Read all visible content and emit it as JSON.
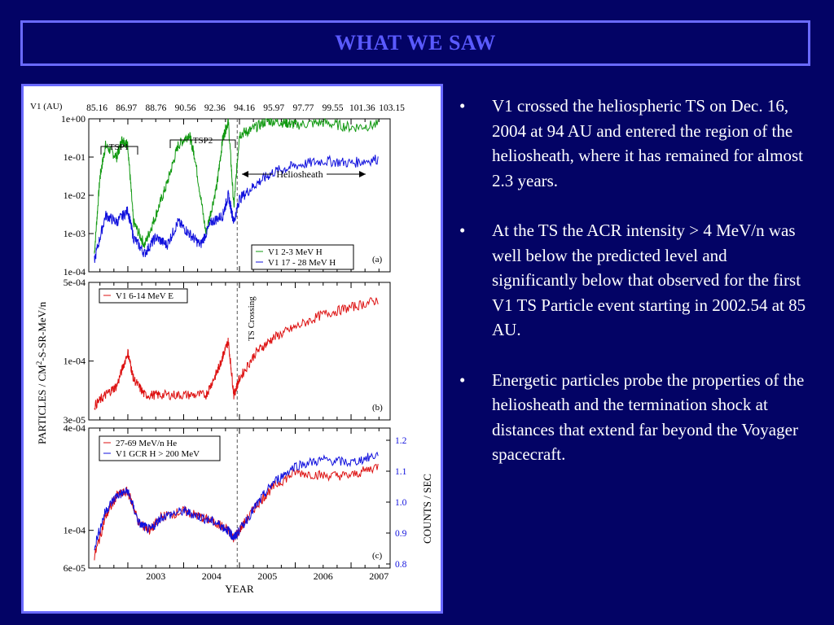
{
  "slide": {
    "title": "WHAT WE SAW",
    "bullets": [
      "V1 crossed the heliospheric TS on Dec. 16, 2004 at 94 AU and entered the region of the heliosheath, where it has remained for almost 2.3 years.",
      "At the TS the ACR intensity > 4 MeV/n was well below the predicted level and significantly below that observed for the first V1 TS Particle event starting in 2002.54 at 85 AU.",
      "Energetic particles probe the properties of the heliosheath and the termination shock at distances that extend far beyond the Voyager spacecraft."
    ],
    "bullet_glyph": "•"
  },
  "figure": {
    "top_axis_label": "V1 (AU)",
    "au_ticks": [
      "85.16",
      "86.97",
      "88.76",
      "90.56",
      "92.36",
      "94.16",
      "95.97",
      "97.77",
      "99.55",
      "101.36",
      "103.15"
    ],
    "ylabel_left": "PARTICLES / CM",
    "ylabel_left_sup": "2",
    "ylabel_left_rest": "-S-SR-MeV/n",
    "ylabel_right": "COUNTS / SEC",
    "xlabel": "YEAR",
    "ts_crossing_label": "TS Crossing",
    "heliosheath_label": "Heliosheath",
    "tsp1_label": "TSP1",
    "tsp2_label": "TSP2",
    "colors": {
      "green": "#119911",
      "blue": "#1111dd",
      "red": "#dd1111",
      "right_axis": "#1111dd"
    }
  },
  "chart_data": [
    {
      "panel": "(a)",
      "type": "line",
      "y_scale": "log",
      "ylim": [
        0.0001,
        1
      ],
      "y_ticks": [
        "1e+00",
        "1e-01",
        "1e-02",
        "1e-03",
        "1e-04"
      ],
      "xlim": [
        2002.3,
        2007.7
      ],
      "series": [
        {
          "name": "V1  2-3 MeV H",
          "color": "#119911",
          "x": [
            2002.4,
            2002.5,
            2002.6,
            2002.8,
            2002.9,
            2003.0,
            2003.1,
            2003.3,
            2003.5,
            2003.7,
            2003.9,
            2004.1,
            2004.2,
            2004.4,
            2004.6,
            2004.7,
            2004.8,
            2004.9,
            2005.0,
            2005.2,
            2005.5,
            2005.8,
            2006.0,
            2006.5,
            2007.0,
            2007.5
          ],
          "y": [
            0.0003,
            0.03,
            0.2,
            0.1,
            0.3,
            0.2,
            0.002,
            0.0005,
            0.003,
            0.02,
            0.2,
            0.4,
            0.1,
            0.001,
            0.02,
            0.3,
            0.9,
            0.005,
            0.4,
            0.5,
            0.9,
            0.8,
            0.7,
            0.8,
            0.6,
            0.7
          ]
        },
        {
          "name": "V1  17 - 28 MeV H",
          "color": "#1111dd",
          "x": [
            2002.4,
            2002.6,
            2002.8,
            2003.0,
            2003.1,
            2003.3,
            2003.5,
            2003.7,
            2003.9,
            2004.1,
            2004.3,
            2004.5,
            2004.7,
            2004.8,
            2004.9,
            2005.0,
            2005.3,
            2005.6,
            2006.0,
            2006.5,
            2007.0,
            2007.5
          ],
          "y": [
            0.0002,
            0.003,
            0.002,
            0.004,
            0.0008,
            0.0003,
            0.0008,
            0.0005,
            0.002,
            0.001,
            0.0005,
            0.002,
            0.003,
            0.01,
            0.002,
            0.008,
            0.02,
            0.04,
            0.06,
            0.08,
            0.07,
            0.09
          ]
        }
      ]
    },
    {
      "panel": "(b)",
      "type": "line",
      "y_scale": "log",
      "ylim": [
        3e-05,
        0.0005
      ],
      "y_ticks": [
        "5e-04",
        "1e-04",
        "3e-05"
      ],
      "xlim": [
        2002.3,
        2007.7
      ],
      "series": [
        {
          "name": "V1  6-14 MeV E",
          "color": "#dd1111",
          "x": [
            2002.4,
            2002.6,
            2002.8,
            2003.0,
            2003.1,
            2003.3,
            2003.6,
            2004.0,
            2004.4,
            2004.6,
            2004.7,
            2004.8,
            2004.9,
            2005.0,
            2005.3,
            2005.6,
            2006.0,
            2006.5,
            2007.0,
            2007.5
          ],
          "y": [
            4e-05,
            5e-05,
            6e-05,
            0.00012,
            7e-05,
            5e-05,
            5e-05,
            5e-05,
            5e-05,
            8e-05,
            0.00011,
            0.00015,
            5e-05,
            7e-05,
            0.00012,
            0.00016,
            0.0002,
            0.00026,
            0.0003,
            0.00035
          ]
        }
      ]
    },
    {
      "panel": "(c)",
      "type": "line",
      "y_scale": "log",
      "ylim": [
        6e-05,
        0.0004
      ],
      "y_ticks": [
        "4e-04",
        "1e-04",
        "6e-05"
      ],
      "y2_ticks": [
        "1.2",
        "1.1",
        "1.0",
        "0.9",
        "0.8"
      ],
      "xlim": [
        2002.3,
        2007.7
      ],
      "x_ticks": [
        "2003",
        "2004",
        "2005",
        "2006",
        "2007"
      ],
      "series": [
        {
          "name": "27-69 MeV/n He",
          "color": "#dd1111",
          "x": [
            2002.4,
            2002.6,
            2002.8,
            2003.0,
            2003.2,
            2003.4,
            2003.6,
            2004.0,
            2004.3,
            2004.6,
            2004.8,
            2004.9,
            2005.0,
            2005.3,
            2005.6,
            2006.0,
            2006.5,
            2007.0,
            2007.5
          ],
          "y": [
            7e-05,
            0.00012,
            0.00016,
            0.00017,
            0.00011,
            0.0001,
            0.00012,
            0.00013,
            0.00012,
            0.00011,
            0.0001,
            9e-05,
            0.0001,
            0.00014,
            0.00018,
            0.00022,
            0.00021,
            0.00021,
            0.00024
          ]
        },
        {
          "name": "V1  GCR H > 200 MeV",
          "color": "#1111dd",
          "x": [
            2002.4,
            2002.6,
            2002.8,
            2003.0,
            2003.2,
            2003.4,
            2003.6,
            2004.0,
            2004.3,
            2004.6,
            2004.8,
            2004.9,
            2005.0,
            2005.3,
            2005.6,
            2006.0,
            2006.5,
            2007.0,
            2007.5
          ],
          "y": [
            8e-05,
            0.00013,
            0.00016,
            0.00017,
            0.00011,
            0.0001,
            0.00012,
            0.00013,
            0.00012,
            0.00011,
            0.0001,
            9e-05,
            0.0001,
            0.00014,
            0.00019,
            0.00024,
            0.00026,
            0.00025,
            0.00028
          ]
        }
      ]
    }
  ]
}
